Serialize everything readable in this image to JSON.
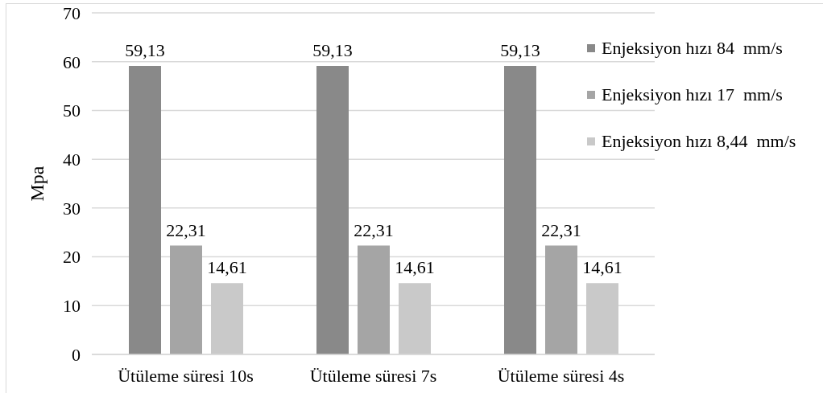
{
  "chart_data": {
    "type": "bar",
    "categories": [
      "Ütüleme süresi 10s",
      "Ütüleme süresi 7s",
      "Ütüleme süresi 4s"
    ],
    "series": [
      {
        "name": "Enjeksiyon hızı 84  mm/s",
        "color": "#898989",
        "values": [
          59.13,
          59.13,
          59.13
        ],
        "value_labels": [
          "59,13",
          "59,13",
          "59,13"
        ]
      },
      {
        "name": "Enjeksiyon hızı 17  mm/s",
        "color": "#a5a5a5",
        "values": [
          22.31,
          22.31,
          22.31
        ],
        "value_labels": [
          "22,31",
          "22,31",
          "22,31"
        ]
      },
      {
        "name": "Enjeksiyon hızı 8,44  mm/s",
        "color": "#c9c9c9",
        "values": [
          14.61,
          14.61,
          14.61
        ],
        "value_labels": [
          "14,61",
          "14,61",
          "14,61"
        ]
      }
    ],
    "ylabel": "Mpa",
    "ylim": [
      0,
      70
    ],
    "yticks": [
      0,
      10,
      20,
      30,
      40,
      50,
      60,
      70
    ],
    "grid": "y",
    "legend": "top right"
  }
}
